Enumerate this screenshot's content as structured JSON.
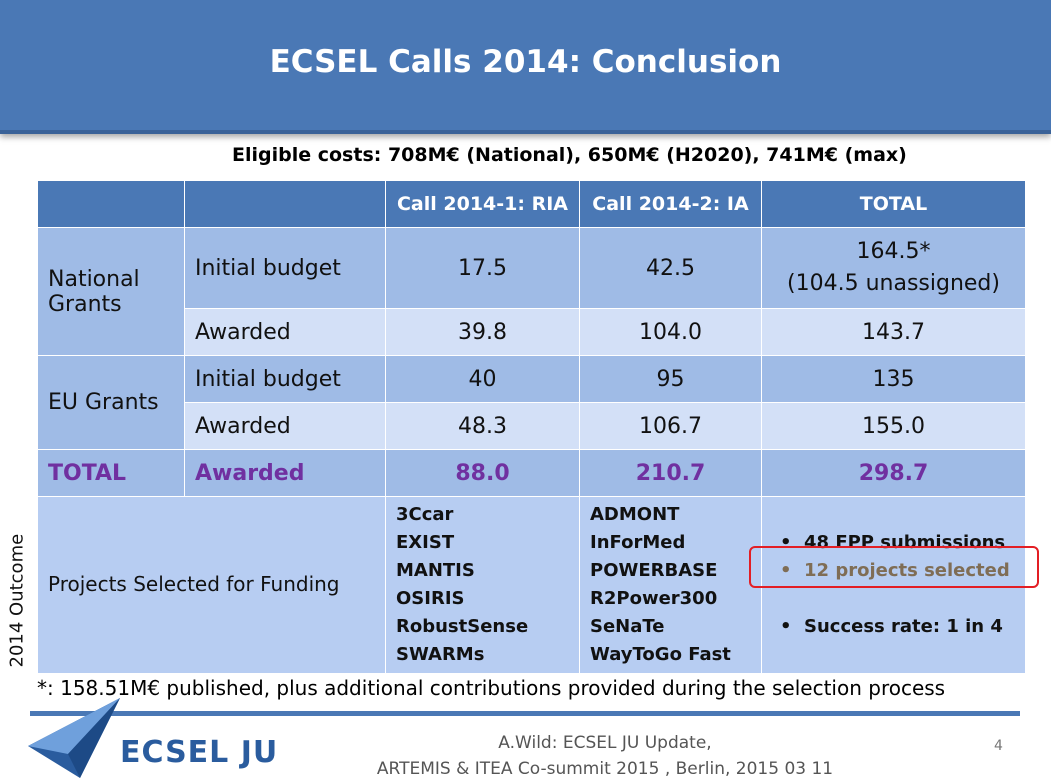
{
  "title": "ECSEL Calls 2014: Conclusion",
  "eligible_costs": "Eligible  costs:  708M€ (National), 650M€ (H2020), 741M€ (max)",
  "table": {
    "headers": [
      "",
      "",
      "Call 2014-1: RIA",
      "Call 2014-2: IA",
      "TOTAL"
    ],
    "national": {
      "group": "National Grants",
      "initial": {
        "label": "Initial budget",
        "ria": "17.5",
        "ia": "42.5",
        "total_1": "164.5*",
        "total_2": "(104.5 unassigned)"
      },
      "awarded": {
        "label": "Awarded",
        "ria": "39.8",
        "ia": "104.0",
        "total": "143.7"
      }
    },
    "eu": {
      "group": "EU Grants",
      "initial": {
        "label": "Initial budget",
        "ria": "40",
        "ia": "95",
        "total": "135"
      },
      "awarded": {
        "label": "Awarded",
        "ria": "48.3",
        "ia": "106.7",
        "total": "155.0"
      }
    },
    "total_row": {
      "group": "TOTAL",
      "label": "Awarded",
      "ria": "88.0",
      "ia": "210.7",
      "total": "298.7"
    },
    "projects": {
      "label": "Projects Selected for Funding",
      "ria": [
        "3Ccar",
        "EXIST",
        "MANTIS",
        "OSIRIS",
        "RobustSense",
        "SWARMs"
      ],
      "ia": [
        "ADMONT",
        "InForMed",
        "POWERBASE",
        "R2Power300",
        "SeNaTe",
        "WayToGo Fast"
      ],
      "summary": [
        "48 FPP submissions",
        "12 projects selected",
        "Success rate: 1 in 4"
      ]
    }
  },
  "side_label": "2014 Outcome",
  "footnote": "*: 158.51M€ published, plus additional contributions provided during the selection process",
  "footer": {
    "logo": "ECSEL JU",
    "line1": "A.Wild: ECSEL JU Update,",
    "line2": "ARTEMIS & ITEA Co-summit 2015 , Berlin, 2015 03 11",
    "page": "4"
  },
  "colors": {
    "accent": "#4a78b5",
    "total_purple": "#7030a0",
    "highlight_red": "#e31e24"
  }
}
